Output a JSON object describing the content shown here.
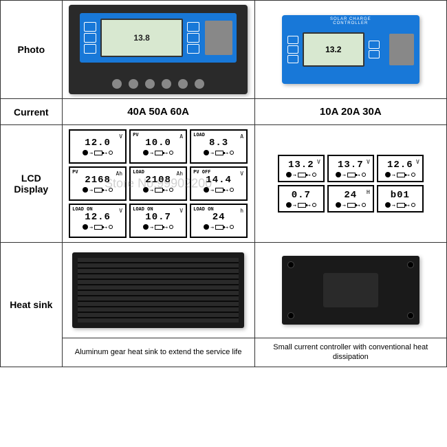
{
  "rows": {
    "photo": {
      "label": "Photo"
    },
    "current": {
      "label": "Current",
      "col1": "40A 50A 60A",
      "col2": "10A 20A 30A"
    },
    "lcd": {
      "label": "LCD\nDisplay"
    },
    "heatsink": {
      "label": "Heat sink",
      "caption1": "Aluminum gear heat sink to extend the service life",
      "caption2": "Small current controller with conventional heat dissipation"
    }
  },
  "controller_small_title": "SOLAR CHARGE CONTROLLER",
  "lcd_large_display": "13.8",
  "lcd_small_display": "13.2",
  "lcd_grid_large": [
    {
      "label": "",
      "value": "12.0",
      "unit": "V"
    },
    {
      "label": "PV",
      "value": "10.0",
      "unit": "A"
    },
    {
      "label": "LOAD",
      "value": "8.3",
      "unit": "A"
    },
    {
      "label": "PV",
      "value": "2168",
      "unit": "Ah"
    },
    {
      "label": "LOAD",
      "value": "2108",
      "unit": "Ah"
    },
    {
      "label": "PV OFF",
      "value": "14.4",
      "unit": "V"
    },
    {
      "label": "LOAD ON",
      "value": "12.6",
      "unit": "V"
    },
    {
      "label": "LOAD ON",
      "value": "10.7",
      "unit": "V"
    },
    {
      "label": "LOAD ON",
      "value": "24",
      "unit": "h"
    }
  ],
  "lcd_grid_small": [
    {
      "value": "13.2",
      "unit": "V"
    },
    {
      "value": "13.7",
      "unit": "V"
    },
    {
      "value": "12.6",
      "unit": "V"
    },
    {
      "value": "0.7",
      "unit": ""
    },
    {
      "value": "24",
      "unit": "H"
    },
    {
      "value": "b01",
      "unit": ""
    }
  ],
  "watermark": "Store No.99902200",
  "styling": {
    "table_border_color": "#333333",
    "background_color": "#ffffff",
    "controller_body_color": "#2a2a2a",
    "controller_panel_color": "#1878d8",
    "lcd_screen_color": "#d8e8d0",
    "heatsink_color": "#1a1a1a",
    "label_font_size": 14,
    "caption_font_size": 11,
    "lcd_value_font_size": 14,
    "current_font_size": 15
  }
}
